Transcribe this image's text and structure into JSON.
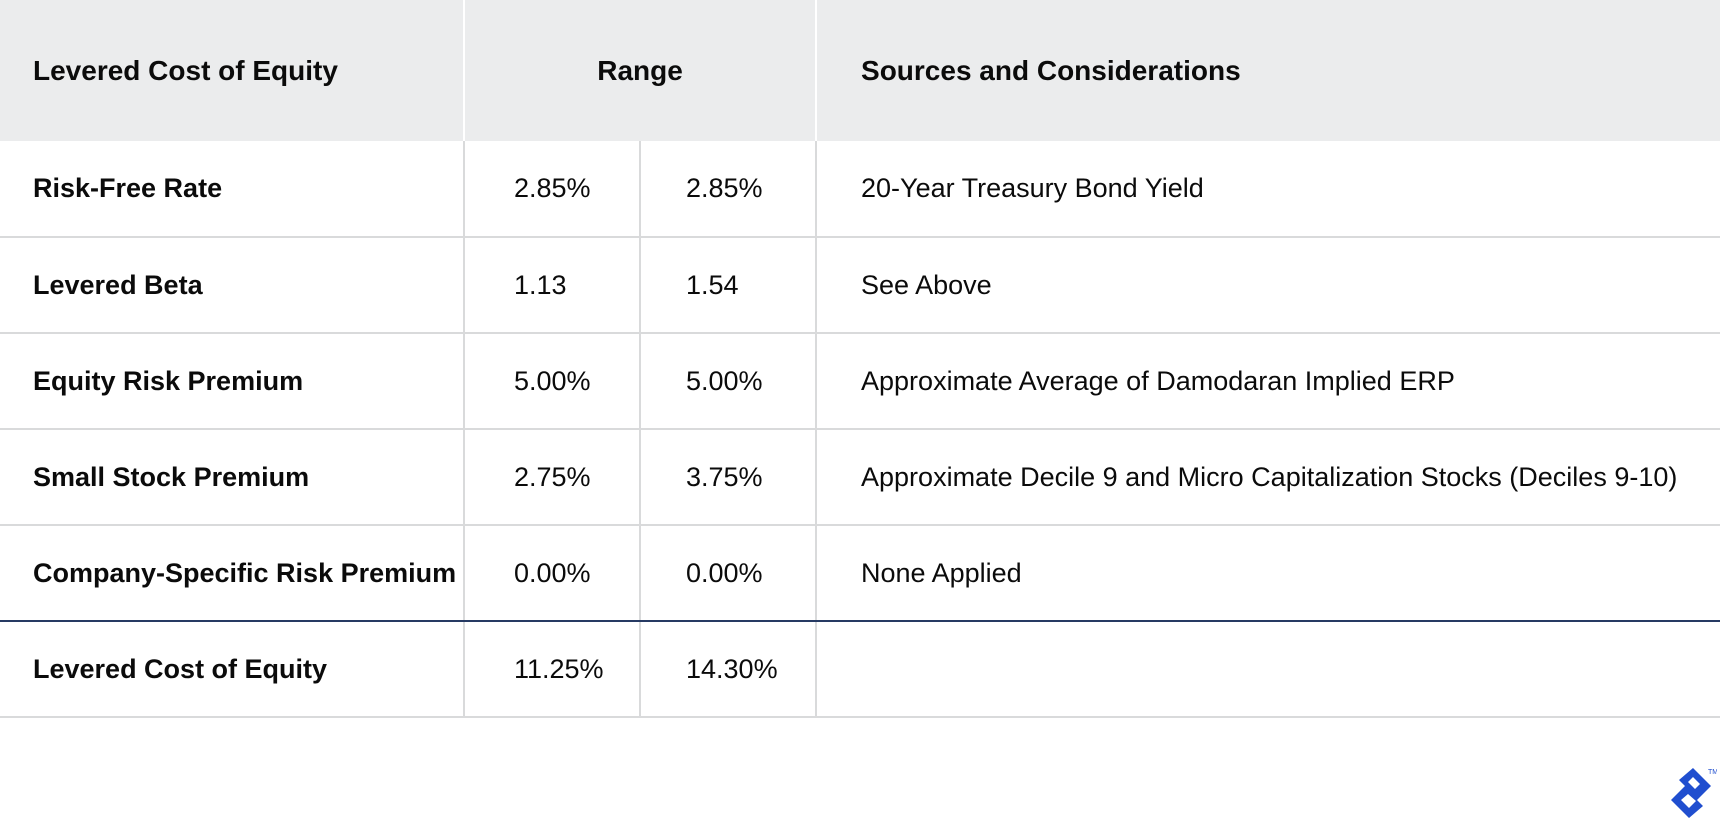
{
  "table": {
    "headers": {
      "label": "Levered Cost of Equity",
      "range": "Range",
      "sources": "Sources and Considerations"
    },
    "rows": [
      {
        "label": "Risk-Free Rate",
        "low": "2.85%",
        "high": "2.85%",
        "source": "20-Year Treasury Bond Yield"
      },
      {
        "label": "Levered Beta",
        "low": "1.13",
        "high": "1.54",
        "source": "See Above"
      },
      {
        "label": "Equity Risk Premium",
        "low": "5.00%",
        "high": "5.00%",
        "source": "Approximate Average of Damodaran Implied ERP"
      },
      {
        "label": "Small Stock Premium",
        "low": "2.75%",
        "high": "3.75%",
        "source": "Approximate Decile 9 and Micro Capitalization Stocks (Deciles 9-10)"
      },
      {
        "label": "Company-Specific Risk Premium",
        "low": "0.00%",
        "high": "0.00%",
        "source": "None Applied"
      },
      {
        "label": "Levered Cost of Equity",
        "low": "11.25%",
        "high": "14.30%",
        "source": ""
      }
    ]
  },
  "logo": {
    "icon": "toptal-logo-icon",
    "trademark": "TM",
    "color": "#204ecf"
  },
  "colors": {
    "header_bg": "#ebeced",
    "grid_line": "#d9dadb",
    "total_separator": "#263a63"
  }
}
